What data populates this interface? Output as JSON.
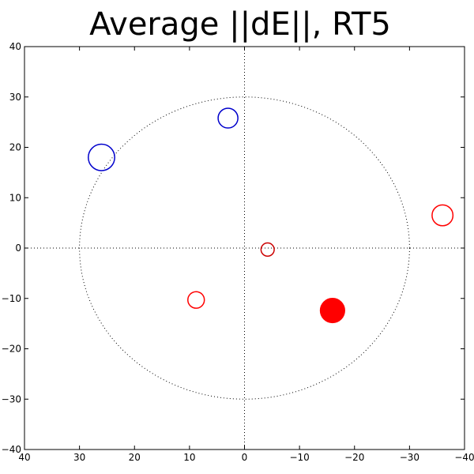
{
  "chart_data": {
    "type": "scatter",
    "title": "Average ||dE||, RT5",
    "xlabel": "",
    "ylabel": "",
    "xlim": [
      40,
      -40
    ],
    "ylim": [
      -40,
      40
    ],
    "x_inverted": true,
    "xticks": [
      40,
      30,
      20,
      10,
      0,
      -10,
      -20,
      -30,
      -40
    ],
    "yticks": [
      40,
      30,
      20,
      10,
      0,
      -10,
      -20,
      -30,
      -40
    ],
    "xtick_labels": [
      "40",
      "30",
      "20",
      "10",
      "0",
      "−10",
      "−20",
      "−30",
      "−40"
    ],
    "ytick_labels": [
      "40",
      "30",
      "20",
      "10",
      "0",
      "−10",
      "−20",
      "−30",
      "−40"
    ],
    "grid": false,
    "reference_circle": {
      "radius": 30,
      "style": "dotted"
    },
    "reference_lines": {
      "x": 0,
      "y": 0,
      "style": "dotted"
    },
    "points": [
      {
        "x": 26,
        "y": 18,
        "size": 2.4,
        "color": "#0000cc",
        "filled": false
      },
      {
        "x": 3,
        "y": 25.8,
        "size": 1.8,
        "color": "#0000cc",
        "filled": false
      },
      {
        "x": -36,
        "y": 6.5,
        "size": 1.9,
        "color": "#ff0000",
        "filled": false
      },
      {
        "x": -4.2,
        "y": -0.3,
        "size": 1.2,
        "color": "#cc0000",
        "filled": false
      },
      {
        "x": 8.8,
        "y": -10.3,
        "size": 1.5,
        "color": "#ff0000",
        "filled": false
      },
      {
        "x": -16,
        "y": -12.4,
        "size": 2.2,
        "color": "#ff0000",
        "filled": true
      }
    ]
  }
}
